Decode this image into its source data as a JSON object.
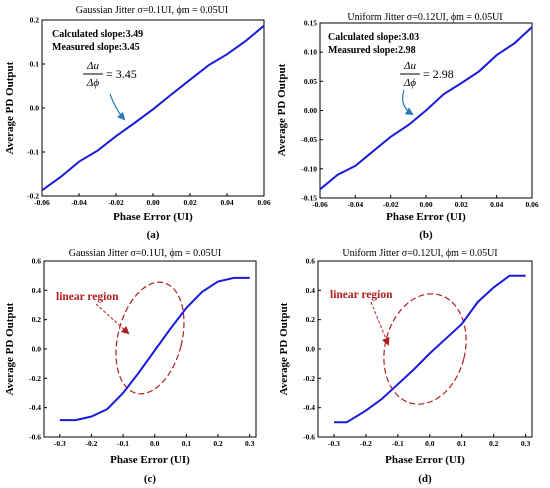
{
  "chart_data": [
    {
      "panel": "(a)",
      "type": "line",
      "title": "Gaussian Jitter σ=0.1UI, ϕm = 0.05UI",
      "xlabel": "Phase Error (UI)",
      "ylabel": "Average PD Output",
      "xlim": [
        -0.06,
        0.06
      ],
      "ylim": [
        -0.2,
        0.2
      ],
      "xticks": [
        "-0.06",
        "-0.04",
        "-0.02",
        "0.00",
        "0.02",
        "0.04",
        "0.06"
      ],
      "yticks": [
        "-0.2",
        "-0.1",
        "0.0",
        "0.1",
        "0.2"
      ],
      "series": [
        {
          "color": "#1a1adb",
          "x": [
            -0.06,
            -0.05,
            -0.04,
            -0.03,
            -0.02,
            -0.01,
            0.0,
            0.01,
            0.02,
            0.03,
            0.04,
            0.05,
            0.06
          ],
          "y": [
            -0.187,
            -0.157,
            -0.122,
            -0.097,
            -0.064,
            -0.034,
            -0.003,
            0.031,
            0.064,
            0.097,
            0.122,
            0.152,
            0.187
          ]
        }
      ],
      "annotations": [
        "Calculated slope:3.49",
        "Measured slope:3.45"
      ],
      "slope_annotation": {
        "num": "Δu",
        "den": "Δϕ",
        "value": "= 3.45"
      }
    },
    {
      "panel": "(b)",
      "type": "line",
      "title": "Uniform Jitter σ=0.12UI, ϕm = 0.05UI",
      "xlabel": "Phase Error (UI)",
      "ylabel": "Average PD Output",
      "xlim": [
        -0.06,
        0.06
      ],
      "ylim": [
        -0.15,
        0.15
      ],
      "xticks": [
        "-0.06",
        "-0.04",
        "-0.02",
        "0.00",
        "0.02",
        "0.04",
        "0.06"
      ],
      "yticks": [
        "-0.15",
        "-0.10",
        "-0.05",
        "0.00",
        "0.05",
        "0.10",
        "0.15"
      ],
      "series": [
        {
          "color": "#1a1adb",
          "x": [
            -0.06,
            -0.05,
            -0.04,
            -0.03,
            -0.02,
            -0.01,
            0.0,
            0.01,
            0.02,
            0.03,
            0.04,
            0.05,
            0.06
          ],
          "y": [
            -0.135,
            -0.11,
            -0.095,
            -0.07,
            -0.045,
            -0.025,
            0.0,
            0.028,
            0.047,
            0.067,
            0.095,
            0.115,
            0.143
          ]
        }
      ],
      "annotations": [
        "Calculated slope:3.03",
        "Measured slope:2.98"
      ],
      "slope_annotation": {
        "num": "Δu",
        "den": "Δϕ",
        "value": "= 2.98"
      }
    },
    {
      "panel": "(c)",
      "type": "line",
      "title": "Gaussian Jitter σ=0.1UI, ϕm = 0.05UI",
      "xlabel": "Phase Error (UI)",
      "ylabel": "Average PD Output",
      "xlim": [
        -0.35,
        0.32
      ],
      "ylim": [
        -0.6,
        0.6
      ],
      "xticks": [
        "-0.3",
        "-0.2",
        "-0.1",
        "0.0",
        "0.1",
        "0.2",
        "0.3"
      ],
      "yticks": [
        "-0.6",
        "-0.4",
        "-0.2",
        "0.0",
        "0.2",
        "0.4",
        "0.6"
      ],
      "series": [
        {
          "color": "#1a1adb",
          "x": [
            -0.3,
            -0.25,
            -0.2,
            -0.15,
            -0.1,
            -0.05,
            0.0,
            0.05,
            0.1,
            0.15,
            0.2,
            0.25,
            0.3
          ],
          "y": [
            -0.485,
            -0.485,
            -0.46,
            -0.41,
            -0.3,
            -0.16,
            -0.01,
            0.14,
            0.28,
            0.39,
            0.46,
            0.485,
            0.485
          ]
        }
      ],
      "region_label": "linear region"
    },
    {
      "panel": "(d)",
      "type": "line",
      "title": "Uniform Jitter σ=0.12UI, ϕm = 0.05UI",
      "xlabel": "Phase Error (UI)",
      "ylabel": "Average PD Output",
      "xlim": [
        -0.35,
        0.32
      ],
      "ylim": [
        -0.6,
        0.6
      ],
      "xticks": [
        "-0.3",
        "-0.2",
        "-0.1",
        "0.0",
        "0.1",
        "0.2",
        "0.3"
      ],
      "yticks": [
        "-0.6",
        "-0.4",
        "-0.2",
        "0.0",
        "0.2",
        "0.4",
        "0.6"
      ],
      "series": [
        {
          "color": "#1a1adb",
          "x": [
            -0.3,
            -0.26,
            -0.2,
            -0.15,
            -0.1,
            -0.05,
            0.0,
            0.05,
            0.1,
            0.15,
            0.2,
            0.25,
            0.3
          ],
          "y": [
            -0.5,
            -0.5,
            -0.42,
            -0.34,
            -0.24,
            -0.14,
            -0.03,
            0.07,
            0.17,
            0.32,
            0.42,
            0.5,
            0.5
          ]
        }
      ],
      "region_label": "linear region"
    }
  ],
  "colors": {
    "line": "#1a1adb",
    "region": "#b01e1e",
    "arrow": "#2a7ab8"
  }
}
